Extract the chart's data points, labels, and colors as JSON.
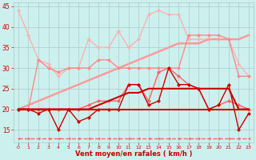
{
  "x": [
    0,
    1,
    2,
    3,
    4,
    5,
    6,
    7,
    8,
    9,
    10,
    11,
    12,
    13,
    14,
    15,
    16,
    17,
    18,
    19,
    20,
    21,
    22,
    23
  ],
  "series": [
    {
      "name": "line1_light_salmon",
      "color": "#FFB0B0",
      "linewidth": 1.0,
      "markersize": 2.5,
      "marker": "D",
      "linestyle": "-",
      "y": [
        44,
        38,
        32,
        31,
        28,
        30,
        30,
        37,
        35,
        35,
        39,
        35,
        37,
        43,
        44,
        43,
        43,
        37,
        37,
        37,
        37,
        37,
        31,
        28
      ]
    },
    {
      "name": "line2_medium_pink_nomarker",
      "color": "#FF9999",
      "linewidth": 1.8,
      "markersize": 0,
      "marker": null,
      "linestyle": "-",
      "y": [
        20,
        21,
        22,
        23,
        24,
        25,
        26,
        27,
        28,
        29,
        30,
        31,
        32,
        33,
        34,
        35,
        36,
        36,
        36,
        37,
        37,
        37,
        37,
        38
      ]
    },
    {
      "name": "line3_medium_pink_markers",
      "color": "#FF8888",
      "linewidth": 1.0,
      "markersize": 2.5,
      "marker": "D",
      "linestyle": "-",
      "y": [
        20,
        20,
        32,
        30,
        29,
        30,
        30,
        30,
        32,
        32,
        30,
        30,
        30,
        30,
        30,
        30,
        30,
        38,
        38,
        38,
        38,
        37,
        28,
        28
      ]
    },
    {
      "name": "line4_salmon_markers",
      "color": "#FF6060",
      "linewidth": 1.0,
      "markersize": 2.5,
      "marker": "D",
      "linestyle": "-",
      "y": [
        20,
        20,
        20,
        20,
        20,
        20,
        20,
        21,
        22,
        22,
        22,
        26,
        26,
        22,
        29,
        30,
        28,
        26,
        25,
        20,
        21,
        22,
        21,
        20
      ]
    },
    {
      "name": "line5_dark_red_diagonal",
      "color": "#CC0000",
      "linewidth": 1.5,
      "markersize": 0,
      "marker": null,
      "linestyle": "-",
      "y": [
        20,
        20,
        20,
        20,
        20,
        20,
        20,
        20,
        21,
        22,
        23,
        24,
        24,
        25,
        25,
        25,
        25,
        25,
        25,
        25,
        25,
        25,
        20,
        20
      ]
    },
    {
      "name": "line6_dark_red_markers",
      "color": "#CC0000",
      "linewidth": 1.0,
      "markersize": 2.5,
      "marker": "D",
      "linestyle": "-",
      "y": [
        20,
        20,
        19,
        20,
        15,
        20,
        17,
        18,
        20,
        20,
        20,
        26,
        26,
        21,
        22,
        30,
        26,
        26,
        25,
        20,
        21,
        26,
        15,
        19
      ]
    },
    {
      "name": "line7_flat_dark_red",
      "color": "#CC0000",
      "linewidth": 1.5,
      "markersize": 0,
      "marker": null,
      "linestyle": "-",
      "y": [
        20,
        20,
        20,
        20,
        20,
        20,
        20,
        20,
        20,
        20,
        20,
        20,
        20,
        20,
        20,
        20,
        20,
        20,
        20,
        20,
        20,
        20,
        20,
        20
      ]
    },
    {
      "name": "line8_dashed_bottom",
      "color": "#FF6666",
      "linewidth": 1.0,
      "markersize": 2.5,
      "marker": "<",
      "linestyle": "--",
      "y": [
        13,
        13,
        13,
        13,
        13,
        13,
        13,
        13,
        13,
        13,
        13,
        13,
        13,
        13,
        13,
        13,
        13,
        13,
        13,
        13,
        13,
        13,
        13,
        13
      ]
    }
  ],
  "ylim": [
    12,
    46
  ],
  "yticks": [
    15,
    20,
    25,
    30,
    35,
    40,
    45
  ],
  "xlim": [
    -0.5,
    23.5
  ],
  "xticks": [
    0,
    1,
    2,
    3,
    4,
    5,
    6,
    7,
    8,
    9,
    10,
    11,
    12,
    13,
    14,
    15,
    16,
    17,
    18,
    19,
    20,
    21,
    22,
    23
  ],
  "xlabel": "Vent moyen/en rafales ( km/h )",
  "background_color": "#CCF0EE",
  "grid_color": "#AACCCC",
  "tick_color": "#CC0000",
  "label_color": "#CC0000"
}
